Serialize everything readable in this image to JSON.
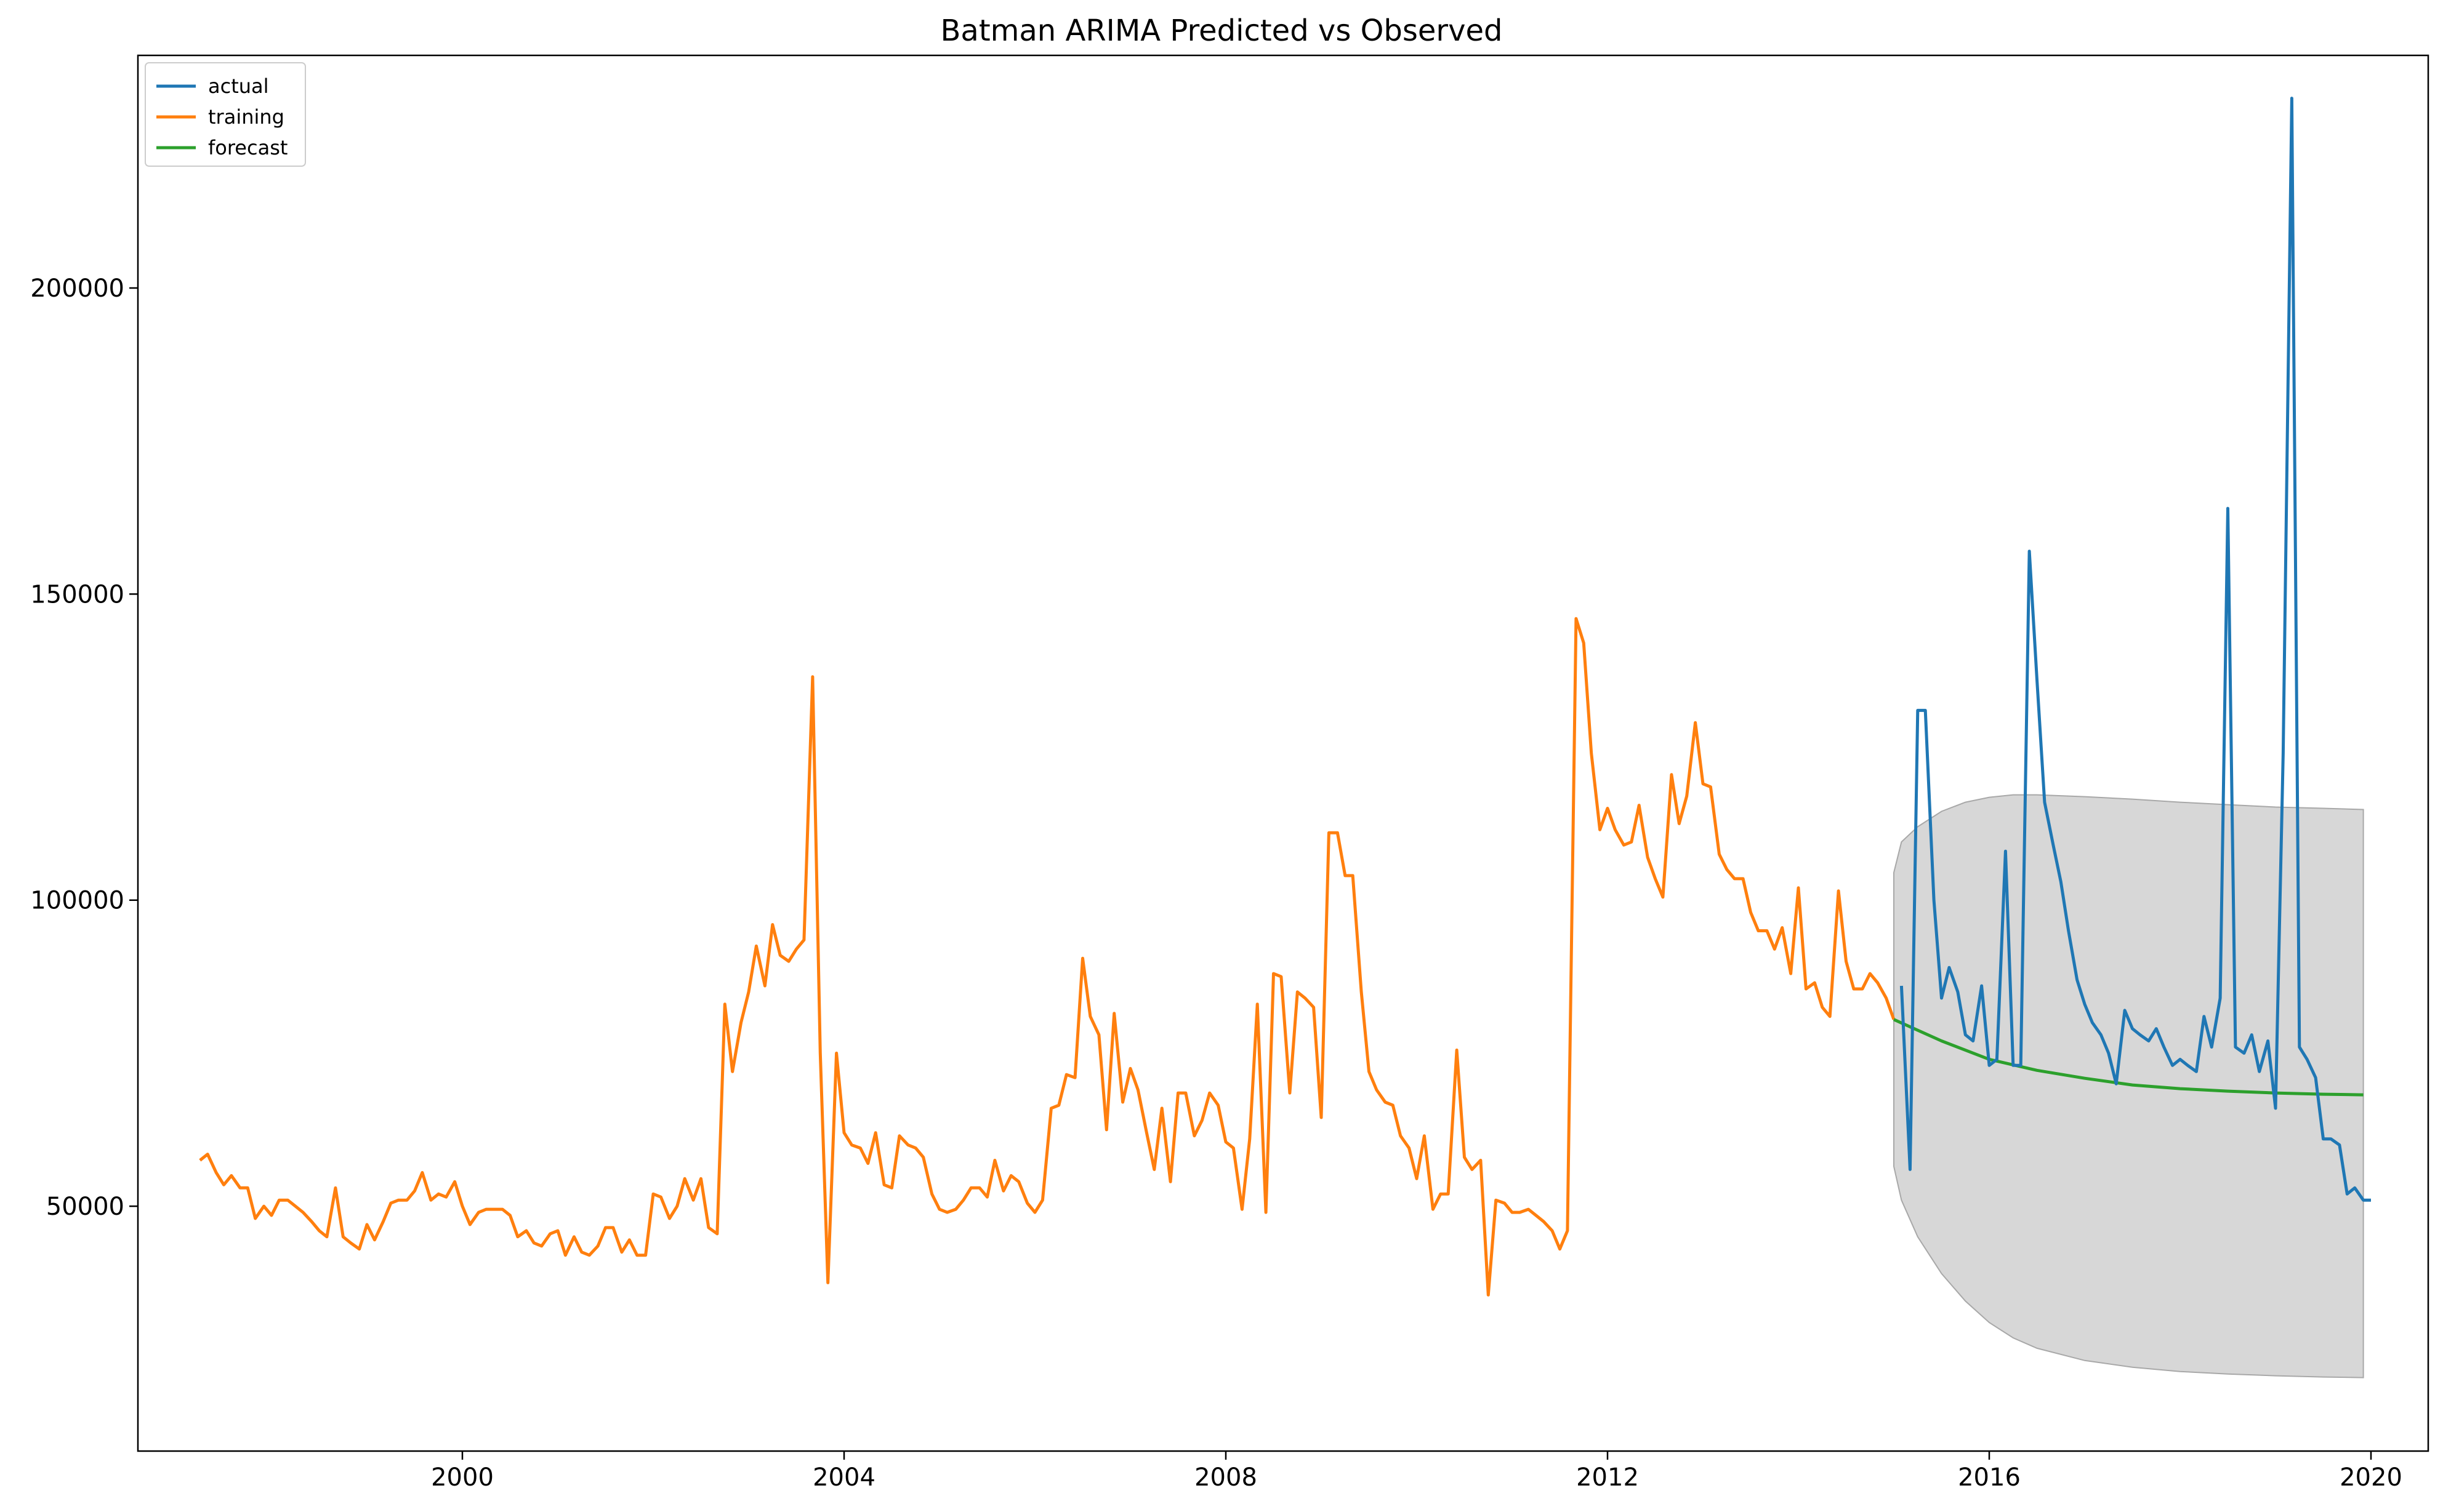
{
  "chart_data": {
    "type": "line",
    "title": "Batman ARIMA Predicted vs Observed",
    "xlabel": "",
    "ylabel": "",
    "xlim": [
      1996.6,
      2020.6
    ],
    "ylim": [
      10000,
      238000
    ],
    "x_ticks": [
      2000,
      2004,
      2008,
      2012,
      2016,
      2020
    ],
    "y_ticks": [
      50000,
      100000,
      150000,
      200000
    ],
    "grid": false,
    "legend_position": "top-left",
    "series": [
      {
        "name": "actual",
        "color": "#1f77b4",
        "x": [
          2015.08,
          2015.17,
          2015.25,
          2015.33,
          2015.42,
          2015.5,
          2015.58,
          2015.67,
          2015.75,
          2015.83,
          2015.92,
          2016.0,
          2016.08,
          2016.17,
          2016.25,
          2016.33,
          2016.42,
          2016.5,
          2016.58,
          2016.67,
          2016.75,
          2016.83,
          2016.92,
          2017.0,
          2017.08,
          2017.17,
          2017.25,
          2017.33,
          2017.42,
          2017.5,
          2017.58,
          2017.67,
          2017.75,
          2017.83,
          2017.92,
          2018.0,
          2018.08,
          2018.17,
          2018.25,
          2018.33,
          2018.42,
          2018.5,
          2018.58,
          2018.67,
          2018.75,
          2018.83,
          2018.92,
          2019.0,
          2019.08,
          2019.17,
          2019.25,
          2019.33,
          2019.42,
          2019.5,
          2019.58,
          2019.67,
          2019.75,
          2019.83,
          2019.92,
          2020.0
        ],
        "y": [
          86000,
          56000,
          131000,
          131000,
          100000,
          84000,
          89000,
          85000,
          78000,
          77000,
          86000,
          73000,
          74000,
          108000,
          73000,
          73000,
          157000,
          136000,
          116000,
          109000,
          103000,
          95000,
          87000,
          83000,
          80000,
          78000,
          75000,
          70000,
          82000,
          79000,
          78000,
          77000,
          79000,
          76000,
          73000,
          74000,
          73000,
          72000,
          81000,
          76000,
          84000,
          164000,
          76000,
          75000,
          78000,
          72000,
          77000,
          66000,
          124000,
          231000,
          76000,
          74000,
          71000,
          61000,
          61000,
          60000,
          52000,
          53000,
          51000,
          51000
        ]
      },
      {
        "name": "training",
        "color": "#ff7f0e",
        "x": [
          1997.25,
          1997.33,
          1997.42,
          1997.5,
          1997.58,
          1997.67,
          1997.75,
          1997.83,
          1997.92,
          1998.0,
          1998.08,
          1998.17,
          1998.25,
          1998.33,
          1998.42,
          1998.5,
          1998.58,
          1998.67,
          1998.75,
          1998.83,
          1998.92,
          1999.0,
          1999.08,
          1999.17,
          1999.25,
          1999.33,
          1999.42,
          1999.5,
          1999.58,
          1999.67,
          1999.75,
          1999.83,
          1999.92,
          2000.0,
          2000.08,
          2000.17,
          2000.25,
          2000.33,
          2000.42,
          2000.5,
          2000.58,
          2000.67,
          2000.75,
          2000.83,
          2000.92,
          2001.0,
          2001.08,
          2001.17,
          2001.25,
          2001.33,
          2001.42,
          2001.5,
          2001.58,
          2001.67,
          2001.75,
          2001.83,
          2001.92,
          2002.0,
          2002.08,
          2002.17,
          2002.25,
          2002.33,
          2002.42,
          2002.5,
          2002.58,
          2002.67,
          2002.75,
          2002.83,
          2002.92,
          2003.0,
          2003.08,
          2003.17,
          2003.25,
          2003.33,
          2003.42,
          2003.5,
          2003.58,
          2003.67,
          2003.75,
          2003.83,
          2003.92,
          2004.0,
          2004.08,
          2004.17,
          2004.25,
          2004.33,
          2004.42,
          2004.5,
          2004.58,
          2004.67,
          2004.75,
          2004.83,
          2004.92,
          2005.0,
          2005.08,
          2005.17,
          2005.25,
          2005.33,
          2005.42,
          2005.5,
          2005.58,
          2005.67,
          2005.75,
          2005.83,
          2005.92,
          2006.0,
          2006.08,
          2006.17,
          2006.25,
          2006.33,
          2006.42,
          2006.5,
          2006.58,
          2006.67,
          2006.75,
          2006.83,
          2006.92,
          2007.0,
          2007.08,
          2007.17,
          2007.25,
          2007.33,
          2007.42,
          2007.5,
          2007.58,
          2007.67,
          2007.75,
          2007.83,
          2007.92,
          2008.0,
          2008.08,
          2008.17,
          2008.25,
          2008.33,
          2008.42,
          2008.5,
          2008.58,
          2008.67,
          2008.75,
          2008.83,
          2008.92,
          2009.0,
          2009.08,
          2009.17,
          2009.25,
          2009.33,
          2009.42,
          2009.5,
          2009.58,
          2009.67,
          2009.75,
          2009.83,
          2009.92,
          2010.0,
          2010.08,
          2010.17,
          2010.25,
          2010.33,
          2010.42,
          2010.5,
          2010.58,
          2010.67,
          2010.75,
          2010.83,
          2010.92,
          2011.0,
          2011.08,
          2011.17,
          2011.25,
          2011.33,
          2011.42,
          2011.5,
          2011.58,
          2011.67,
          2011.75,
          2011.83,
          2011.92,
          2012.0,
          2012.08,
          2012.17,
          2012.25,
          2012.33,
          2012.42,
          2012.5,
          2012.58,
          2012.67,
          2012.75,
          2012.83,
          2012.92,
          2013.0,
          2013.08,
          2013.17,
          2013.25,
          2013.33,
          2013.42,
          2013.5,
          2013.58,
          2013.67,
          2013.75,
          2013.83,
          2013.92,
          2014.0,
          2014.08,
          2014.17,
          2014.25,
          2014.33,
          2014.42,
          2014.5,
          2014.58,
          2014.67,
          2014.75,
          2014.83,
          2014.92,
          2015.0
        ],
        "y": [
          57500,
          58500,
          55500,
          53500,
          55000,
          53000,
          53000,
          48000,
          50000,
          48500,
          51000,
          51000,
          50000,
          49000,
          47500,
          46000,
          45000,
          53000,
          45000,
          44000,
          43000,
          47000,
          44500,
          47500,
          50500,
          51000,
          51000,
          52500,
          55500,
          51000,
          52000,
          51500,
          54000,
          50000,
          47000,
          49000,
          49500,
          49500,
          49500,
          48500,
          45000,
          46000,
          44000,
          43500,
          45500,
          46000,
          42000,
          45000,
          42500,
          42000,
          43500,
          46500,
          46500,
          42500,
          44500,
          42000,
          42000,
          52000,
          51500,
          48000,
          50000,
          54500,
          51000,
          54500,
          46500,
          45500,
          83000,
          72000,
          80000,
          85000,
          92500,
          86000,
          96000,
          91000,
          90000,
          92000,
          93500,
          136500,
          75000,
          37500,
          75000,
          62000,
          60000,
          59500,
          57000,
          62000,
          53500,
          53000,
          61500,
          60000,
          59500,
          58000,
          52000,
          49500,
          49000,
          49500,
          51000,
          53000,
          53000,
          51500,
          57500,
          52500,
          55000,
          54000,
          50500,
          49000,
          51000,
          66000,
          66500,
          71500,
          71000,
          90500,
          81000,
          78000,
          62500,
          81500,
          67000,
          72500,
          69000,
          62000,
          56000,
          66000,
          54000,
          68500,
          68500,
          61500,
          64000,
          68500,
          66500,
          60500,
          59500,
          49500,
          61000,
          83000,
          49000,
          88000,
          87500,
          68500,
          85000,
          84000,
          82500,
          64500,
          111000,
          111000,
          104000,
          104000,
          85000,
          72000,
          69000,
          67000,
          66500,
          61500,
          59500,
          54500,
          61500,
          49500,
          52000,
          52000,
          75500,
          58000,
          56000,
          57500,
          35500,
          51000,
          50500,
          49000,
          49000,
          49500,
          48500,
          47500,
          46000,
          43000,
          46000,
          146000,
          142000,
          124000,
          111500,
          115000,
          111500,
          109000,
          109500,
          115500,
          107000,
          103500,
          100500,
          120500,
          112500,
          117000,
          129000,
          119000,
          118500,
          107500,
          105000,
          103500,
          103500,
          98000,
          95000,
          95000,
          92000,
          95500,
          88000,
          102000,
          85500,
          86500,
          82500,
          81000,
          101500,
          90000,
          85500,
          85500,
          88000,
          86500,
          84000,
          80500
        ]
      },
      {
        "name": "forecast",
        "color": "#2ca02c",
        "x": [
          2015.0,
          2015.5,
          2016.0,
          2016.5,
          2017.0,
          2017.5,
          2018.0,
          2018.5,
          2019.0,
          2019.5,
          2019.92
        ],
        "y": [
          80500,
          77000,
          74000,
          72200,
          70900,
          69800,
          69200,
          68800,
          68500,
          68300,
          68200
        ]
      }
    ],
    "confidence_band": {
      "color": "#d3d3d3",
      "x": [
        2015.0,
        2015.08,
        2015.25,
        2015.5,
        2015.75,
        2016.0,
        2016.25,
        2016.5,
        2017.0,
        2017.5,
        2018.0,
        2018.5,
        2019.0,
        2019.5,
        2019.92
      ],
      "upper": [
        104500,
        109500,
        112000,
        114500,
        116000,
        116800,
        117200,
        117200,
        116900,
        116500,
        116000,
        115600,
        115200,
        115000,
        114800
      ],
      "lower": [
        56500,
        51000,
        45000,
        39000,
        34500,
        31000,
        28500,
        26800,
        24800,
        23700,
        23000,
        22600,
        22300,
        22100,
        22000
      ]
    }
  }
}
